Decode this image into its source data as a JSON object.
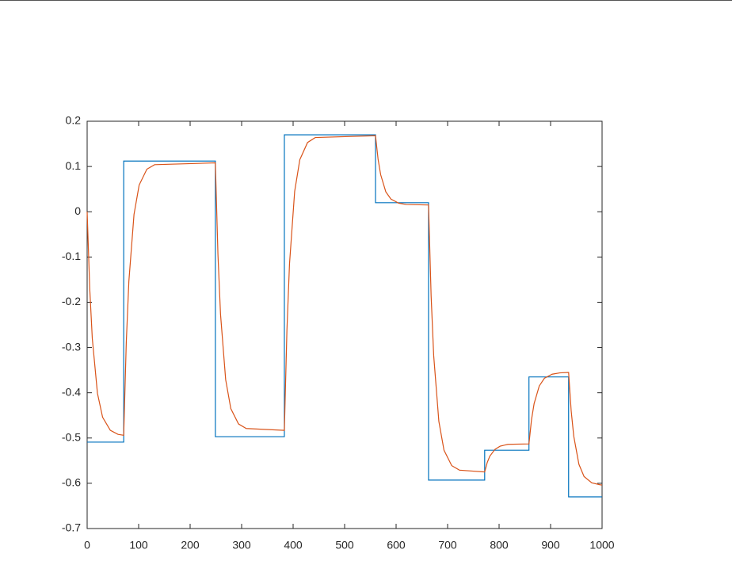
{
  "chart_data": {
    "type": "line",
    "series": [
      {
        "color": "#0072bd",
        "x": [
          0,
          71,
          71,
          249,
          249,
          383,
          383,
          560,
          560,
          663,
          663,
          772,
          772,
          858,
          858,
          935,
          935,
          1000
        ],
        "values": [
          -0.509,
          -0.509,
          0.112,
          0.112,
          -0.497,
          -0.497,
          0.17,
          0.17,
          0.02,
          0.02,
          -0.593,
          -0.593,
          -0.527,
          -0.527,
          -0.365,
          -0.365,
          -0.63,
          -0.63
        ]
      },
      {
        "color": "#d95319",
        "x": [
          0,
          5,
          10,
          20,
          30,
          45,
          60,
          71,
          76,
          81,
          91,
          101,
          116,
          131,
          249,
          254,
          259,
          269,
          279,
          294,
          309,
          383,
          388,
          393,
          403,
          413,
          428,
          443,
          560,
          565,
          570,
          580,
          590,
          605,
          620,
          663,
          668,
          673,
          683,
          693,
          708,
          723,
          772,
          777,
          782,
          792,
          802,
          817,
          858,
          863,
          868,
          878,
          888,
          903,
          918,
          935,
          940,
          945,
          955,
          965,
          980,
          995,
          1000
        ],
        "values": [
          0,
          -0.169,
          -0.28,
          -0.401,
          -0.454,
          -0.483,
          -0.492,
          -0.494,
          -0.289,
          -0.154,
          -0.006,
          0.059,
          0.094,
          0.104,
          0.108,
          -0.094,
          -0.226,
          -0.371,
          -0.435,
          -0.469,
          -0.479,
          -0.483,
          -0.261,
          -0.115,
          0.045,
          0.115,
          0.153,
          0.164,
          0.168,
          0.116,
          0.082,
          0.044,
          0.028,
          0.019,
          0.016,
          0.015,
          -0.186,
          -0.318,
          -0.463,
          -0.527,
          -0.561,
          -0.571,
          -0.575,
          -0.554,
          -0.54,
          -0.525,
          -0.518,
          -0.514,
          -0.513,
          -0.459,
          -0.424,
          -0.385,
          -0.368,
          -0.359,
          -0.356,
          -0.355,
          -0.44,
          -0.496,
          -0.558,
          -0.585,
          -0.599,
          -0.603,
          -0.604
        ]
      }
    ],
    "xlim": [
      0,
      1000
    ],
    "xticks": [
      0,
      100,
      200,
      300,
      400,
      500,
      600,
      700,
      800,
      900,
      1000
    ],
    "ylim": [
      -0.7,
      0.2
    ],
    "yticks": [
      -0.7,
      -0.6,
      -0.5,
      -0.4,
      -0.3,
      -0.2,
      -0.1,
      0,
      0.1,
      0.2
    ],
    "grid": false
  }
}
